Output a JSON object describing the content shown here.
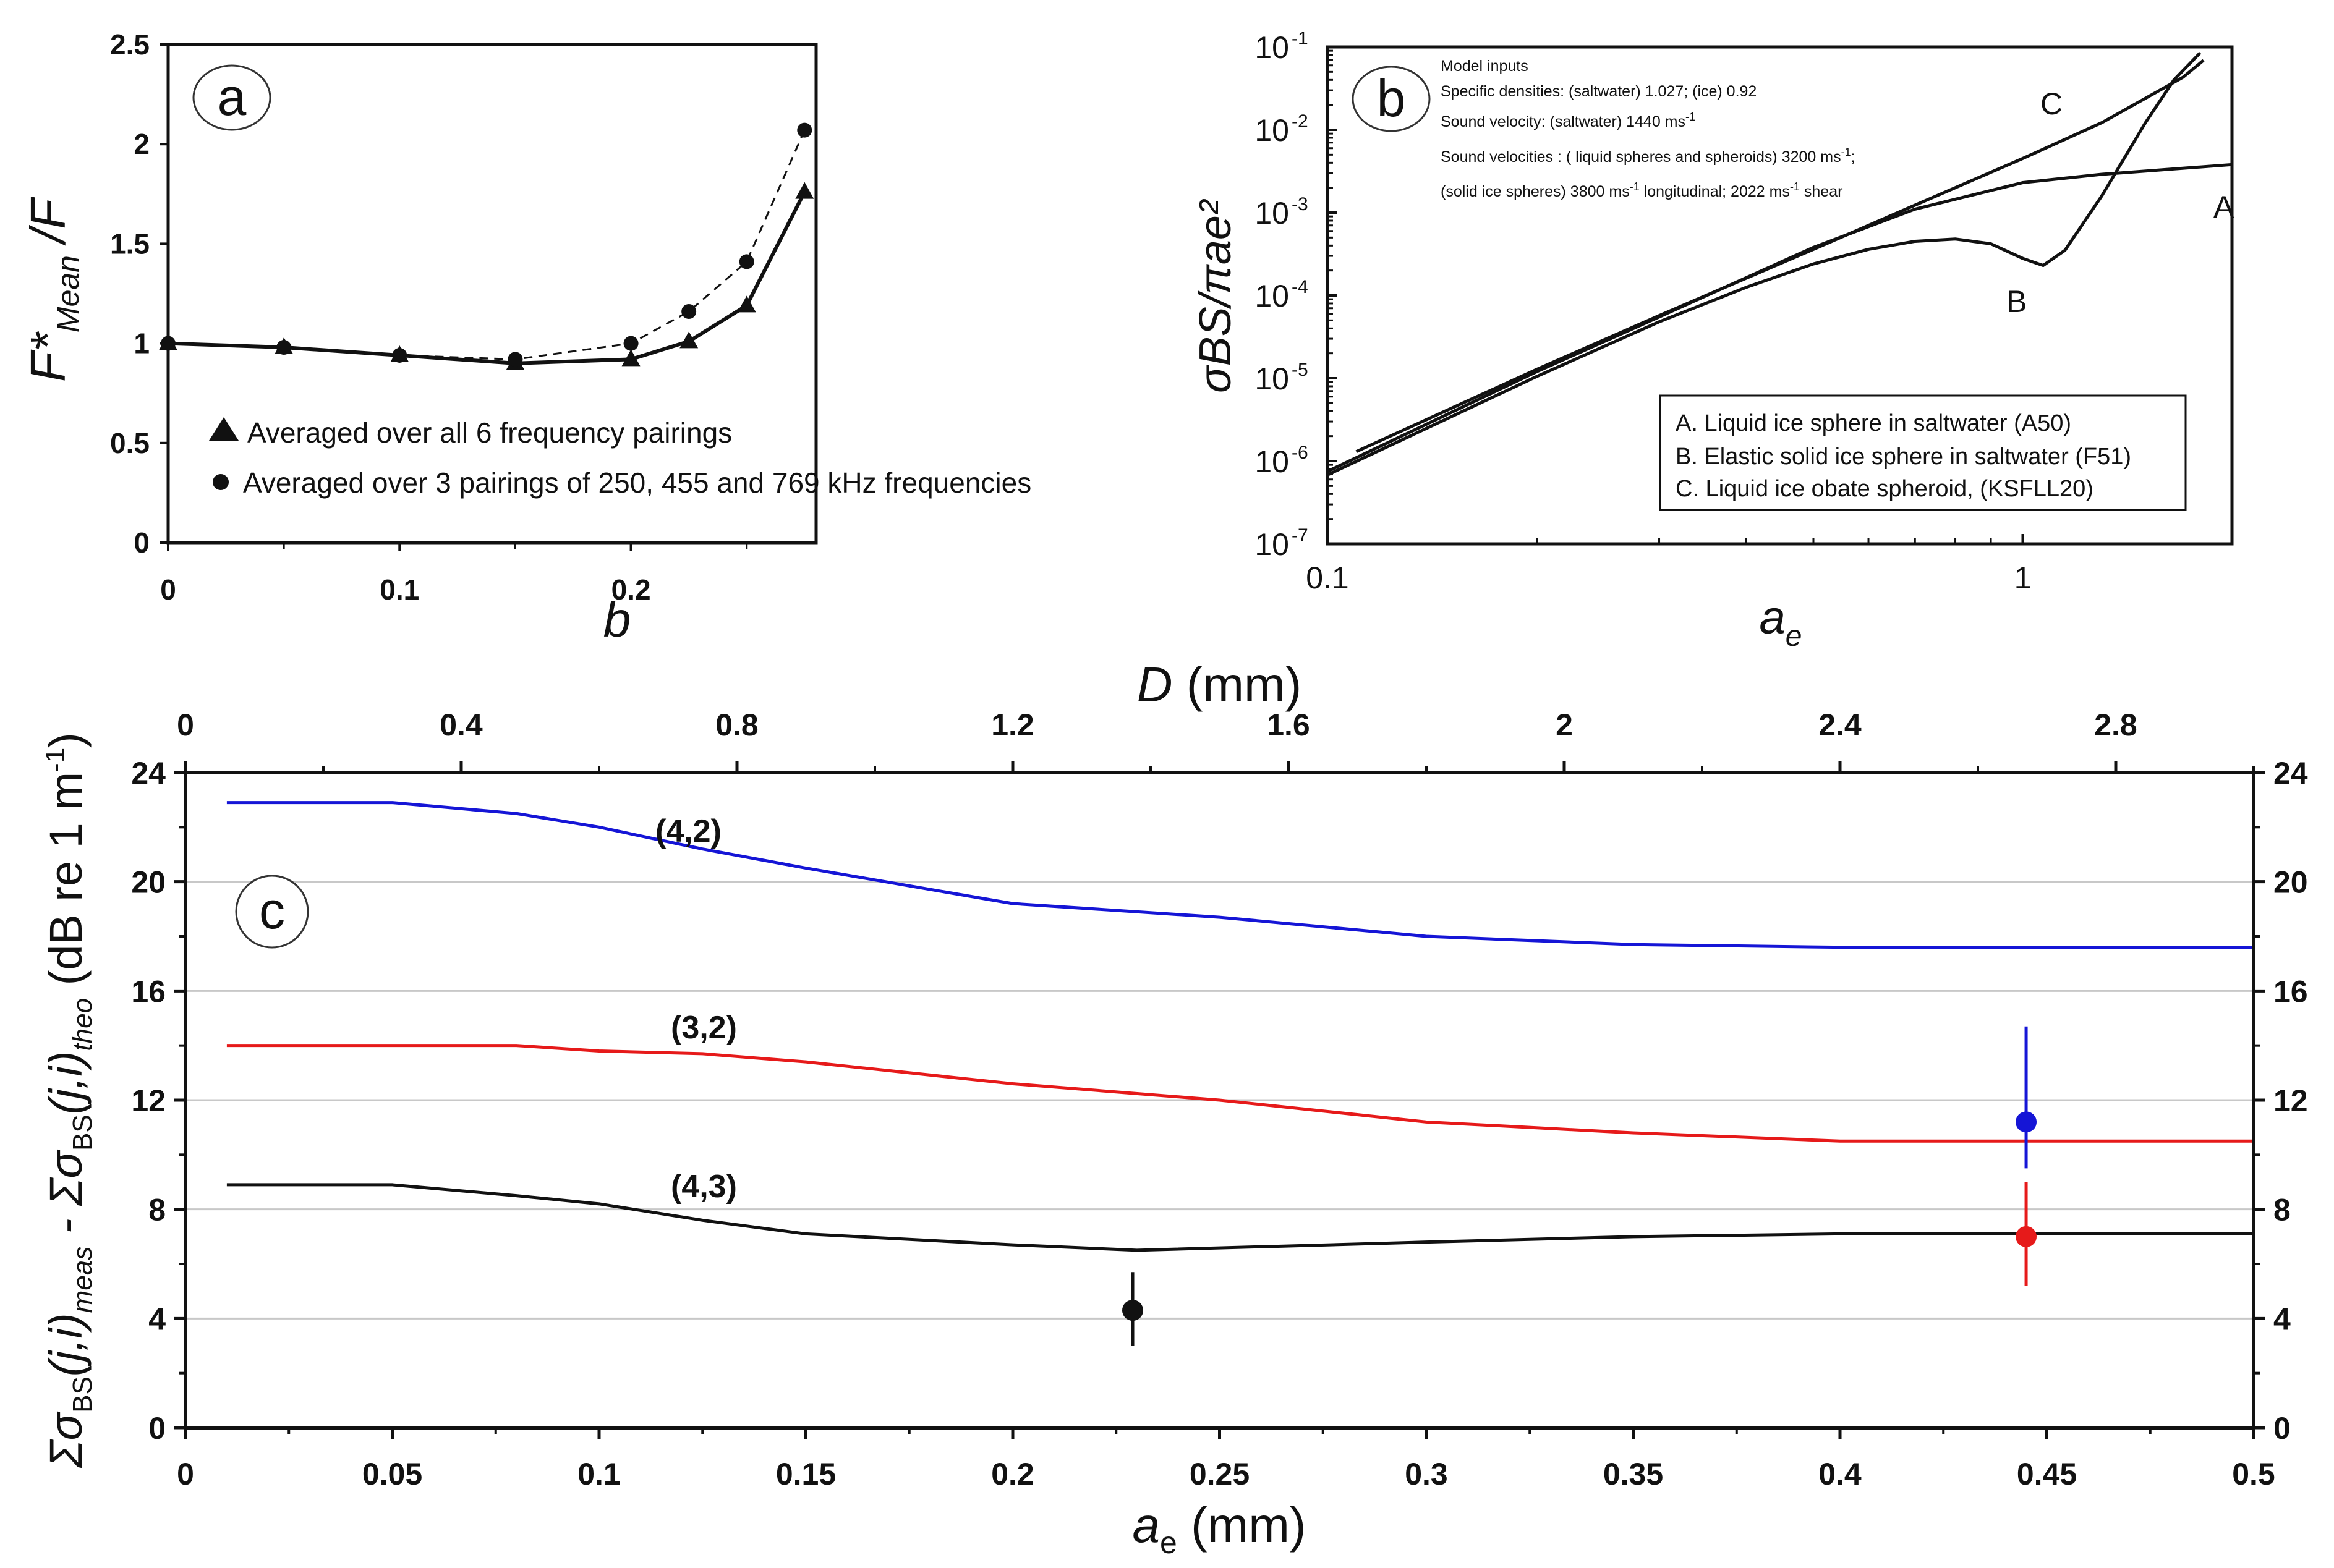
{
  "panels": {
    "a": {
      "label": "a",
      "ylabel_main": "F*",
      "ylabel_sub": "Mean",
      "ylabel_tail": "/F",
      "xlabel": "b",
      "y_ticks": [
        "0",
        "0.5",
        "1",
        "1.5",
        "2",
        "2.5"
      ],
      "x_ticks": [
        "0",
        "0.1",
        "0.2"
      ],
      "legend": [
        "Averaged over all 6 frequency pairings",
        "Averaged over 3 pairings of 250, 455 and 769 kHz frequencies"
      ]
    },
    "b": {
      "label": "b",
      "ylabel": "σBS/πae²",
      "xlabel": "a",
      "xlabel_sub": "e",
      "y_ticks": [
        "10",
        "10",
        "10",
        "10",
        "10",
        "10",
        "10"
      ],
      "y_tick_exps": [
        "-7",
        "-6",
        "-5",
        "-4",
        "-3",
        "-2",
        "-1"
      ],
      "x_ticks": [
        "0.1",
        "1"
      ],
      "curve_labels": [
        "A",
        "B",
        "C"
      ],
      "inputs": [
        "Model inputs",
        "Specific densities: (saltwater) 1.027; (ice) 0.92",
        "Sound velocity: (saltwater) 1440 ms",
        "Sound velocities : ( liquid spheres and spheroids) 3200 ms",
        "(solid ice spheres) 3800 ms",
        " longitudinal; 2022 ms",
        " shear"
      ],
      "inputs_exp": "-1",
      "legend": [
        "A. Liquid ice sphere in saltwater (A50)",
        "B. Elastic solid ice sphere in saltwater (F51)",
        "C. Liquid ice obate spheroid, (KSFLL20)"
      ]
    },
    "c": {
      "label": "c",
      "top_axis_label": "D (mm)",
      "top_axis_label_d": "D",
      "top_axis_label_unit": " (mm)",
      "top_ticks": [
        "0",
        "0.4",
        "0.8",
        "1.2",
        "1.6",
        "2",
        "2.4",
        "2.8"
      ],
      "x_ticks": [
        "0",
        "0.05",
        "0.1",
        "0.15",
        "0.2",
        "0.25",
        "0.3",
        "0.35",
        "0.4",
        "0.45",
        "0.5"
      ],
      "y_ticks": [
        "0",
        "4",
        "8",
        "12",
        "16",
        "20",
        "24"
      ],
      "xlabel_a": "a",
      "xlabel_sub": "e",
      "xlabel_unit": " (mm)",
      "ylabel_parts": {
        "sigma1": "Σσ",
        "bs": "BS",
        "ji": "(j,i)",
        "meas": "meas",
        "minus": " - Σσ",
        "theo": "theo",
        "unit": " (dB re 1 m",
        "exp": "-1",
        "close": ")"
      },
      "series_labels": [
        "(4,2)",
        "(3,2)",
        "(4,3)"
      ]
    }
  },
  "colors": {
    "blue": "#1515d6",
    "red": "#e61a1a",
    "black": "#111111",
    "grid": "#c8c8c8"
  },
  "chart_data": [
    {
      "type": "line",
      "panel": "a",
      "title": "",
      "xlabel": "b",
      "ylabel": "F*Mean/F",
      "xlim": [
        0,
        0.28
      ],
      "ylim": [
        0,
        2.5
      ],
      "series": [
        {
          "name": "Averaged over all 6 frequency pairings",
          "marker": "triangle",
          "style": "solid",
          "x": [
            0,
            0.05,
            0.1,
            0.15,
            0.2,
            0.225,
            0.25,
            0.275
          ],
          "y": [
            1.0,
            0.98,
            0.94,
            0.9,
            0.92,
            1.01,
            1.19,
            1.76
          ]
        },
        {
          "name": "Averaged over 3 pairings of 250, 455 and 769 kHz frequencies",
          "marker": "circle",
          "style": "dashed",
          "x": [
            0,
            0.05,
            0.1,
            0.15,
            0.2,
            0.225,
            0.25,
            0.275
          ],
          "y": [
            1.0,
            0.98,
            0.94,
            0.92,
            1.0,
            1.16,
            1.41,
            2.07
          ]
        }
      ]
    },
    {
      "type": "line",
      "panel": "b",
      "xscale": "log",
      "yscale": "log",
      "xlabel": "ae",
      "ylabel": "σBS/πae²",
      "xlim": [
        0.1,
        2.0
      ],
      "ylim": [
        1e-07,
        0.1
      ],
      "series": [
        {
          "name": "A",
          "x": [
            0.1,
            0.2,
            0.3,
            0.5,
            0.7,
            1.0,
            1.3,
            2.0
          ],
          "y": [
            7.5e-07,
            1.2e-05,
            5.5e-05,
            0.00038,
            0.0011,
            0.0023,
            0.0029,
            0.0038
          ]
        },
        {
          "name": "B",
          "x": [
            0.1,
            0.2,
            0.3,
            0.4,
            0.5,
            0.6,
            0.7,
            0.8,
            0.9,
            1.0,
            1.07,
            1.15,
            1.3,
            1.5,
            1.65,
            1.8
          ],
          "y": [
            6.8e-07,
            1.05e-05,
            4.8e-05,
            0.000125,
            0.00024,
            0.00036,
            0.00045,
            0.00048,
            0.00042,
            0.00028,
            0.00023,
            0.00035,
            0.0016,
            0.012,
            0.04,
            0.085
          ]
        },
        {
          "name": "C",
          "x": [
            0.11,
            0.2,
            0.3,
            0.5,
            0.7,
            1.0,
            1.3,
            1.7,
            1.82
          ],
          "y": [
            1.3e-06,
            1.28e-05,
            5.7e-05,
            0.00036,
            0.00123,
            0.0045,
            0.0122,
            0.043,
            0.069
          ]
        }
      ]
    },
    {
      "type": "line",
      "panel": "c",
      "xlabel": "ae (mm)",
      "ylabel": "Σσ_BS(j,i)_meas - Σσ_BS(j,i)_theo (dB re 1 m-1)",
      "top_xlabel": "D (mm)",
      "xlim": [
        0,
        0.5
      ],
      "ylim": [
        0,
        24
      ],
      "top_xlim": [
        0,
        3.0
      ],
      "series": [
        {
          "name": "(4,2)",
          "color": "blue",
          "x": [
            0.01,
            0.05,
            0.08,
            0.1,
            0.125,
            0.15,
            0.2,
            0.25,
            0.3,
            0.35,
            0.4,
            0.45,
            0.5
          ],
          "y": [
            22.9,
            22.9,
            22.5,
            22.0,
            21.2,
            20.5,
            19.2,
            18.7,
            18.0,
            17.7,
            17.6,
            17.6,
            17.6
          ]
        },
        {
          "name": "(3,2)",
          "color": "red",
          "x": [
            0.01,
            0.05,
            0.08,
            0.1,
            0.125,
            0.15,
            0.2,
            0.25,
            0.3,
            0.35,
            0.4,
            0.45,
            0.5
          ],
          "y": [
            14.0,
            14.0,
            14.0,
            13.8,
            13.7,
            13.4,
            12.6,
            12.0,
            11.2,
            10.8,
            10.5,
            10.5,
            10.5
          ]
        },
        {
          "name": "(4,3)",
          "color": "black",
          "x": [
            0.01,
            0.05,
            0.08,
            0.1,
            0.125,
            0.15,
            0.2,
            0.23,
            0.3,
            0.35,
            0.4,
            0.45,
            0.5
          ],
          "y": [
            8.9,
            8.9,
            8.5,
            8.2,
            7.6,
            7.1,
            6.7,
            6.5,
            6.8,
            7.0,
            7.1,
            7.1,
            7.1
          ]
        }
      ],
      "points": [
        {
          "series": "(4,2)",
          "color": "blue",
          "x": 0.445,
          "y": 11.2,
          "err_low": 9.5,
          "err_high": 14.7
        },
        {
          "series": "(3,2)",
          "color": "red",
          "x": 0.445,
          "y": 7.0,
          "err_low": 5.2,
          "err_high": 9.0
        },
        {
          "series": "(4,3)",
          "color": "black",
          "x": 0.229,
          "y": 4.3,
          "err_low": 3.0,
          "err_high": 5.7
        }
      ]
    }
  ]
}
